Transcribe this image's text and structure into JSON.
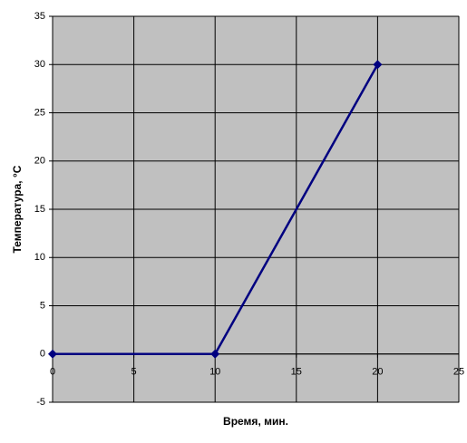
{
  "chart_data": {
    "type": "scatter-line",
    "xlabel": "Время, мин.",
    "ylabel": "Температура, °С",
    "x": [
      0,
      10,
      20
    ],
    "series": [
      {
        "color": "#000080",
        "values": [
          0,
          0,
          30
        ]
      }
    ],
    "xlim": [
      0,
      25
    ],
    "xticks": [
      0,
      5,
      10,
      15,
      20,
      25
    ],
    "ylim": [
      -5,
      35
    ],
    "yticks": [
      -5,
      0,
      5,
      10,
      15,
      20,
      25,
      30,
      35
    ],
    "grid": true,
    "plot_background": "#c0c0c0"
  }
}
